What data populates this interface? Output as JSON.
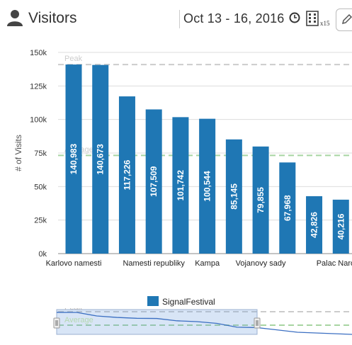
{
  "header": {
    "title": "Visitors",
    "date_range": "Oct 13 - 16, 2016",
    "multiplier": "x15"
  },
  "legend": {
    "label": "SignalFestival"
  },
  "colors": {
    "bar": "#1f77b4",
    "reference": "#a8d5a2",
    "peak": "#cccccc"
  },
  "chart_data": {
    "type": "bar",
    "ylabel": "# of Visits",
    "xlabel": "",
    "ylim": [
      0,
      150000
    ],
    "y_ticks": [
      "0k",
      "25k",
      "50k",
      "75k",
      "100k",
      "125k",
      "150k"
    ],
    "categories": [
      "Karlovo namesti",
      "",
      "",
      "Namesti republiky",
      "",
      "Kampa",
      "",
      "Vojanovy sady",
      "",
      "",
      "Palac Narodni"
    ],
    "values": [
      140983,
      140673,
      117226,
      107509,
      101742,
      100544,
      85145,
      79855,
      67968,
      42826,
      40216
    ],
    "value_labels": [
      "140,983",
      "140,673",
      "117,226",
      "107,509",
      "101,742",
      "100,544",
      "85,145",
      "79,855",
      "67,968",
      "42,826",
      "40,216"
    ],
    "series": [
      {
        "name": "SignalFestival"
      }
    ],
    "reference_lines": [
      {
        "label": "Peak",
        "value": 140983
      },
      {
        "label": "Average",
        "value": 73250
      }
    ],
    "grid": true
  },
  "navigator": {
    "peak_label": "Peak",
    "average_label": "Average"
  }
}
